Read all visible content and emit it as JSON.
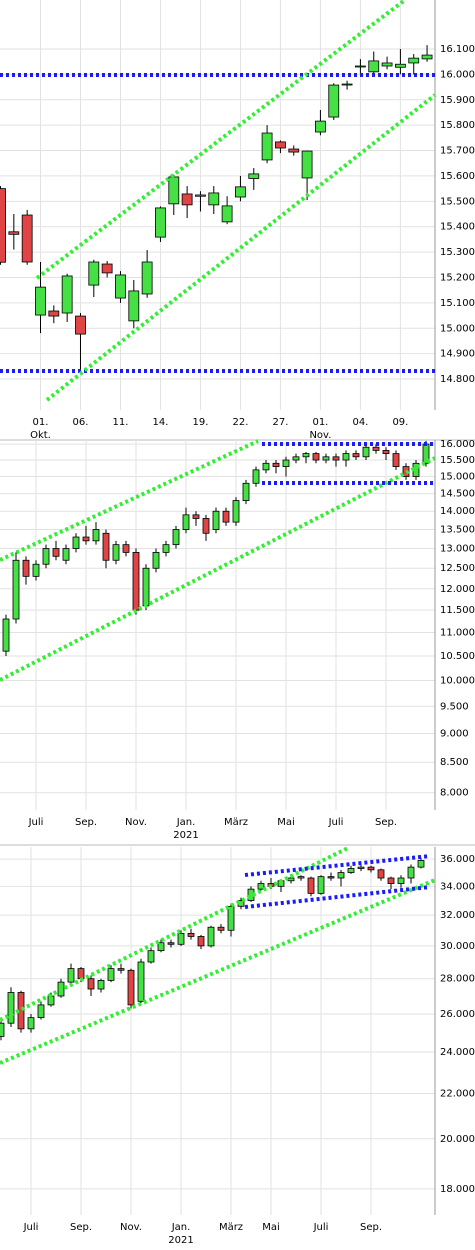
{
  "chart_data": [
    {
      "type": "candlestick",
      "log": false,
      "grid": true,
      "up_color": "#44e044",
      "down_color": "#e04444",
      "categories": [
        null,
        null,
        null,
        "01.",
        null,
        null,
        "06.",
        null,
        null,
        "11.",
        null,
        null,
        "14.",
        null,
        null,
        "19.",
        null,
        null,
        "22.",
        null,
        null,
        "27.",
        null,
        null,
        "01.",
        null,
        null,
        "04.",
        null,
        null,
        "09.",
        null,
        null
      ],
      "category_groups": [
        null,
        null,
        null,
        "Okt.",
        null,
        null,
        null,
        null,
        null,
        null,
        null,
        null,
        null,
        null,
        null,
        null,
        null,
        null,
        null,
        null,
        null,
        null,
        null,
        null,
        "Nov.",
        null,
        null,
        null,
        null,
        null,
        null,
        null,
        null
      ],
      "open": [
        15550,
        15380,
        15446,
        15052,
        15068,
        15060,
        15048,
        15170,
        15253,
        15119,
        15029,
        15135,
        15359,
        15490,
        15529,
        15520,
        15486,
        15419,
        15517,
        15590,
        15663,
        15734,
        15706,
        15592,
        15773,
        15832,
        15960,
        16030,
        16010,
        16033,
        16028,
        16045,
        16061
      ],
      "high": [
        15560,
        15450,
        15466,
        15261,
        15090,
        15215,
        15060,
        15270,
        15265,
        15225,
        15190,
        15308,
        15480,
        15605,
        15560,
        15540,
        15560,
        15520,
        15600,
        15631,
        15800,
        15740,
        15720,
        15700,
        15860,
        15965,
        15975,
        16060,
        16090,
        16070,
        16100,
        16080,
        16115
      ],
      "low": [
        15250,
        15310,
        15250,
        14981,
        15020,
        15025,
        14828,
        15123,
        15200,
        15100,
        15000,
        15120,
        15340,
        15446,
        15434,
        15460,
        15450,
        15410,
        15500,
        15545,
        15650,
        15690,
        15680,
        15505,
        15760,
        15820,
        15940,
        16000,
        16000,
        16020,
        16000,
        16000,
        16050
      ],
      "close": [
        15260,
        15370,
        15261,
        15162,
        15048,
        15206,
        14977,
        15261,
        15218,
        15210,
        15147,
        15261,
        15474,
        15596,
        15486,
        15525,
        15533,
        15482,
        15557,
        15608,
        15769,
        15710,
        15694,
        15698,
        15816,
        15958,
        15962,
        16033,
        16053,
        16045,
        16040,
        16064,
        16076
      ],
      "ylim": [
        14678,
        16293
      ],
      "yticks": [
        {
          "value": 14800,
          "label": "14.800"
        },
        {
          "value": 14900,
          "label": "14.900"
        },
        {
          "value": 15000,
          "label": "15.000"
        },
        {
          "value": 15100,
          "label": "15.100"
        },
        {
          "value": 15200,
          "label": "15.200"
        },
        {
          "value": 15300,
          "label": "15.300"
        },
        {
          "value": 15400,
          "label": "15.400"
        },
        {
          "value": 15500,
          "label": "15.500"
        },
        {
          "value": 15600,
          "label": "15.600"
        },
        {
          "value": 15700,
          "label": "15.700"
        },
        {
          "value": 15800,
          "label": "15.800"
        },
        {
          "value": 15900,
          "label": "15.900"
        },
        {
          "value": 16000,
          "label": "16.000"
        },
        {
          "value": 16100,
          "label": "16.100"
        }
      ]
    },
    {
      "type": "candlestick",
      "log": true,
      "grid": true,
      "up_color": "#44e044",
      "down_color": "#e04444",
      "categories": [
        null,
        null,
        null,
        "Juli",
        null,
        null,
        null,
        null,
        "Sep.",
        null,
        null,
        null,
        null,
        "Nov.",
        null,
        null,
        null,
        null,
        "Jan.",
        null,
        null,
        null,
        null,
        "März",
        null,
        null,
        null,
        null,
        "Mai",
        null,
        null,
        null,
        null,
        "Juli",
        null,
        null,
        null,
        null,
        "Sep.",
        null,
        null,
        null,
        null
      ],
      "category_groups": [
        null,
        null,
        null,
        null,
        null,
        null,
        null,
        null,
        null,
        null,
        null,
        null,
        null,
        null,
        null,
        null,
        null,
        null,
        "2021",
        null,
        null,
        null,
        null,
        null,
        null,
        null,
        null,
        null,
        null,
        null,
        null,
        null,
        null,
        null,
        null,
        null,
        null,
        null,
        null,
        null,
        null,
        null,
        null
      ],
      "open": [
        10600,
        11300,
        12700,
        12300,
        12600,
        13000,
        12700,
        13000,
        13300,
        13200,
        13400,
        12700,
        13100,
        12900,
        11600,
        12500,
        12900,
        13100,
        13500,
        13900,
        13800,
        13500,
        14000,
        13700,
        14300,
        14800,
        15200,
        15400,
        15300,
        15500,
        15600,
        15700,
        15500,
        15600,
        15500,
        15700,
        15600,
        15900,
        15800,
        15700,
        15300,
        15000,
        15400
      ],
      "high": [
        11400,
        12900,
        12800,
        12700,
        13100,
        13200,
        13100,
        13400,
        13600,
        13700,
        13500,
        13200,
        13200,
        13000,
        12600,
        13000,
        13200,
        13600,
        14100,
        14000,
        13900,
        14100,
        14100,
        14400,
        14900,
        15300,
        15500,
        15500,
        15600,
        15700,
        15750,
        15750,
        15700,
        15700,
        15800,
        15800,
        16000,
        16000,
        15900,
        15800,
        15400,
        15500,
        16100
      ],
      "low": [
        10500,
        11200,
        12100,
        12200,
        12500,
        12700,
        12600,
        12900,
        13100,
        13100,
        12500,
        12600,
        12800,
        11400,
        11500,
        12400,
        12800,
        13000,
        13400,
        13600,
        13200,
        13400,
        13600,
        13600,
        14200,
        14700,
        15100,
        15100,
        15000,
        15400,
        15400,
        15400,
        15400,
        15300,
        15300,
        15500,
        15500,
        15700,
        15500,
        15200,
        14900,
        14900,
        15300
      ],
      "close": [
        11300,
        12700,
        12300,
        12600,
        13000,
        12800,
        13000,
        13300,
        13200,
        13500,
        12700,
        13100,
        12900,
        11500,
        12500,
        12900,
        13100,
        13500,
        13900,
        13800,
        13400,
        14000,
        13700,
        14300,
        14800,
        15200,
        15400,
        15300,
        15500,
        15600,
        15700,
        15500,
        15600,
        15500,
        15700,
        15600,
        15900,
        15800,
        15700,
        15300,
        15000,
        15400,
        16000
      ],
      "ylim": [
        7730,
        16130
      ],
      "yticks": [
        {
          "value": 8000,
          "label": "8.000"
        },
        {
          "value": 8500,
          "label": "8.500"
        },
        {
          "value": 9000,
          "label": "9.000"
        },
        {
          "value": 9500,
          "label": "9.500"
        },
        {
          "value": 10000,
          "label": "10.000"
        },
        {
          "value": 10500,
          "label": "10.500"
        },
        {
          "value": 11000,
          "label": "11.000"
        },
        {
          "value": 11500,
          "label": "11.500"
        },
        {
          "value": 12000,
          "label": "12.000"
        },
        {
          "value": 12500,
          "label": "12.500"
        },
        {
          "value": 13000,
          "label": "13.000"
        },
        {
          "value": 13500,
          "label": "13.500"
        },
        {
          "value": 14000,
          "label": "14.000"
        },
        {
          "value": 14500,
          "label": "14.500"
        },
        {
          "value": 15000,
          "label": "15.000"
        },
        {
          "value": 15500,
          "label": "15.500"
        },
        {
          "value": 16000,
          "label": "16.000"
        }
      ]
    },
    {
      "type": "candlestick",
      "log": true,
      "grid": true,
      "up_color": "#44e044",
      "down_color": "#e04444",
      "categories": [
        null,
        null,
        null,
        "Juli",
        null,
        null,
        null,
        null,
        "Sep.",
        null,
        null,
        null,
        null,
        "Nov.",
        null,
        null,
        null,
        null,
        "Jan.",
        null,
        null,
        null,
        null,
        "März",
        null,
        null,
        null,
        "Mai",
        null,
        null,
        null,
        null,
        "Juli",
        null,
        null,
        null,
        null,
        "Sep.",
        null,
        null,
        null,
        null,
        null
      ],
      "category_groups": [
        null,
        null,
        null,
        null,
        null,
        null,
        null,
        null,
        null,
        null,
        null,
        null,
        null,
        null,
        null,
        null,
        null,
        null,
        "2021",
        null,
        null,
        null,
        null,
        null,
        null,
        null,
        null,
        null,
        null,
        null,
        null,
        null,
        null,
        null,
        null,
        null,
        null,
        null,
        null,
        null,
        null,
        null,
        null
      ],
      "open": [
        24800,
        25500,
        27200,
        25200,
        25800,
        26500,
        27000,
        27800,
        28600,
        28000,
        27400,
        27900,
        28600,
        28500,
        26700,
        29000,
        29700,
        30200,
        30100,
        30800,
        30600,
        30000,
        31200,
        31000,
        32600,
        33000,
        33800,
        34200,
        34000,
        34400,
        34600,
        34600,
        33500,
        34700,
        34600,
        35000,
        35300,
        35400,
        35200,
        34600,
        34200,
        34600,
        35400
      ],
      "high": [
        25800,
        27500,
        27300,
        26000,
        26700,
        27200,
        28000,
        28900,
        28700,
        28200,
        28000,
        28800,
        28900,
        28600,
        29200,
        29900,
        30400,
        30400,
        31000,
        31100,
        30700,
        31300,
        31400,
        32800,
        33200,
        34000,
        34400,
        34600,
        34500,
        34700,
        34800,
        34700,
        34800,
        35000,
        35200,
        35500,
        35600,
        35500,
        35300,
        34700,
        34800,
        35600,
        36100
      ],
      "low": [
        24600,
        25300,
        25000,
        25000,
        25700,
        26400,
        26900,
        27700,
        27800,
        27000,
        27200,
        27800,
        28300,
        26300,
        26600,
        28900,
        29600,
        29900,
        30000,
        30400,
        29800,
        29900,
        30800,
        30600,
        32400,
        32900,
        33700,
        33800,
        33600,
        34200,
        34400,
        33300,
        33400,
        34400,
        34000,
        34900,
        35100,
        35000,
        34400,
        33800,
        33900,
        34200,
        35300
      ],
      "close": [
        25500,
        27200,
        25200,
        25800,
        26500,
        27000,
        27800,
        28600,
        28000,
        27400,
        27900,
        28600,
        28500,
        26500,
        29000,
        29700,
        30200,
        30100,
        30800,
        30600,
        30000,
        31200,
        31000,
        32600,
        33000,
        33800,
        34200,
        34000,
        34400,
        34600,
        34700,
        33500,
        34700,
        34600,
        35000,
        35300,
        35400,
        35200,
        34600,
        34200,
        34600,
        35400,
        35900
      ],
      "ylim": [
        17040,
        36930
      ],
      "yticks": [
        {
          "value": 18000,
          "label": "18.000"
        },
        {
          "value": 20000,
          "label": "20.000"
        },
        {
          "value": 22000,
          "label": "22.000"
        },
        {
          "value": 24000,
          "label": "24.000"
        },
        {
          "value": 26000,
          "label": "26.000"
        },
        {
          "value": 28000,
          "label": "28.000"
        },
        {
          "value": 30000,
          "label": "30.000"
        },
        {
          "value": 32000,
          "label": "32.000"
        },
        {
          "value": 34000,
          "label": "34.000"
        },
        {
          "value": 36000,
          "label": "36.000"
        }
      ]
    }
  ]
}
